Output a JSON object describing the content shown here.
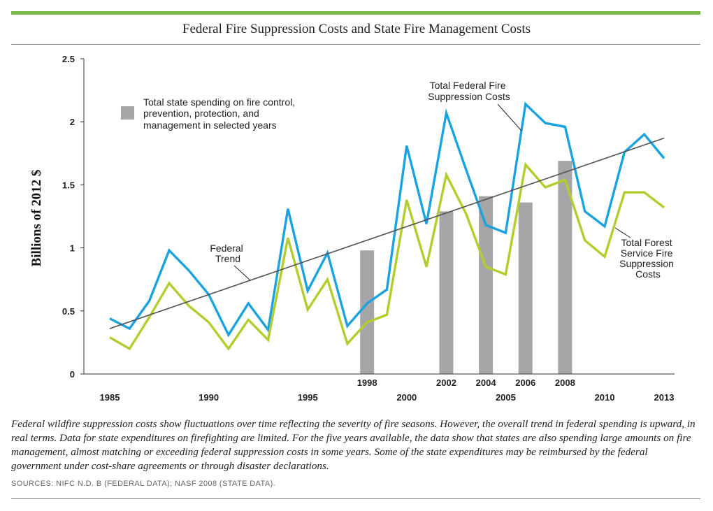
{
  "title": "Federal Fire Suppression Costs and State Fire Management Costs",
  "caption": "Federal wildfire suppression costs show fluctuations over time reflecting the severity of fire seasons. However, the overall trend in federal spending is upward, in real terms. Data for state expenditures on firefighting are limited. For the five years available, the data show that states are also spending large amounts on fire management, almost matching or exceeding federal suppression costs in some years. Some of the state expenditures may be reimbursed by the federal government under cost-share agreements or through disaster declarations.",
  "sources": "SOURCES: NIFC N.D. B (FEDERAL DATA); NASF 2008 (STATE DATA).",
  "colors": {
    "accent_rule": "#7ab648",
    "federal": "#1aa3e0",
    "forest_service": "#b4cd2e",
    "state_bars": "#a6a6a8",
    "trend": "#555555"
  },
  "chart_data": {
    "type": "line",
    "ylabel": "Billions of 2012 $",
    "xlabel": "",
    "ylim": [
      0,
      2.5
    ],
    "xlim": [
      1985,
      2013
    ],
    "yticks": [
      "0",
      "0.5",
      "1",
      "1.5",
      "2",
      "2.5"
    ],
    "xticks_lower": [
      "1985",
      "1990",
      "1995",
      "2000",
      "2005",
      "2010",
      "2013"
    ],
    "xticks_upper": [
      "1998",
      "2002",
      "2004",
      "2006",
      "2008"
    ],
    "x": [
      1985,
      1986,
      1987,
      1988,
      1989,
      1990,
      1991,
      1992,
      1993,
      1994,
      1995,
      1996,
      1997,
      1998,
      1999,
      2000,
      2001,
      2002,
      2003,
      2004,
      2005,
      2006,
      2007,
      2008,
      2009,
      2010,
      2011,
      2012,
      2013
    ],
    "series": [
      {
        "key": "federal",
        "color": "#1aa3e0",
        "values": [
          0.44,
          0.36,
          0.58,
          0.98,
          0.82,
          0.63,
          0.31,
          0.56,
          0.35,
          1.31,
          0.66,
          0.96,
          0.38,
          0.56,
          0.67,
          1.81,
          1.19,
          2.07,
          1.62,
          1.18,
          1.12,
          2.14,
          1.99,
          1.96,
          1.29,
          1.17,
          1.76,
          1.9,
          1.71
        ]
      },
      {
        "key": "forest_service",
        "color": "#b4cd2e",
        "values": [
          0.29,
          0.2,
          0.45,
          0.72,
          0.54,
          0.41,
          0.2,
          0.43,
          0.27,
          1.08,
          0.51,
          0.75,
          0.24,
          0.41,
          0.47,
          1.38,
          0.85,
          1.58,
          1.27,
          0.85,
          0.79,
          1.66,
          1.48,
          1.54,
          1.06,
          0.93,
          1.44,
          1.44,
          1.32
        ]
      }
    ],
    "bars": {
      "key": "state",
      "color": "#a6a6a8",
      "x": [
        1998,
        2002,
        2004,
        2006,
        2008
      ],
      "values": [
        0.98,
        1.29,
        1.41,
        1.36,
        1.69
      ]
    },
    "trend": {
      "x": [
        1985,
        2013
      ],
      "y": [
        0.36,
        1.87
      ],
      "color": "#555555"
    },
    "annotations": {
      "legend_text": [
        "Total state spending on fire control,",
        "prevention, protection, and",
        "management in selected years"
      ],
      "federal_label": [
        "Total Federal Fire",
        "Suppression Costs"
      ],
      "trend_label": [
        "Federal",
        "Trend"
      ],
      "forest_label": [
        "Total Forest",
        "Service Fire",
        "Suppression",
        "Costs"
      ]
    }
  }
}
